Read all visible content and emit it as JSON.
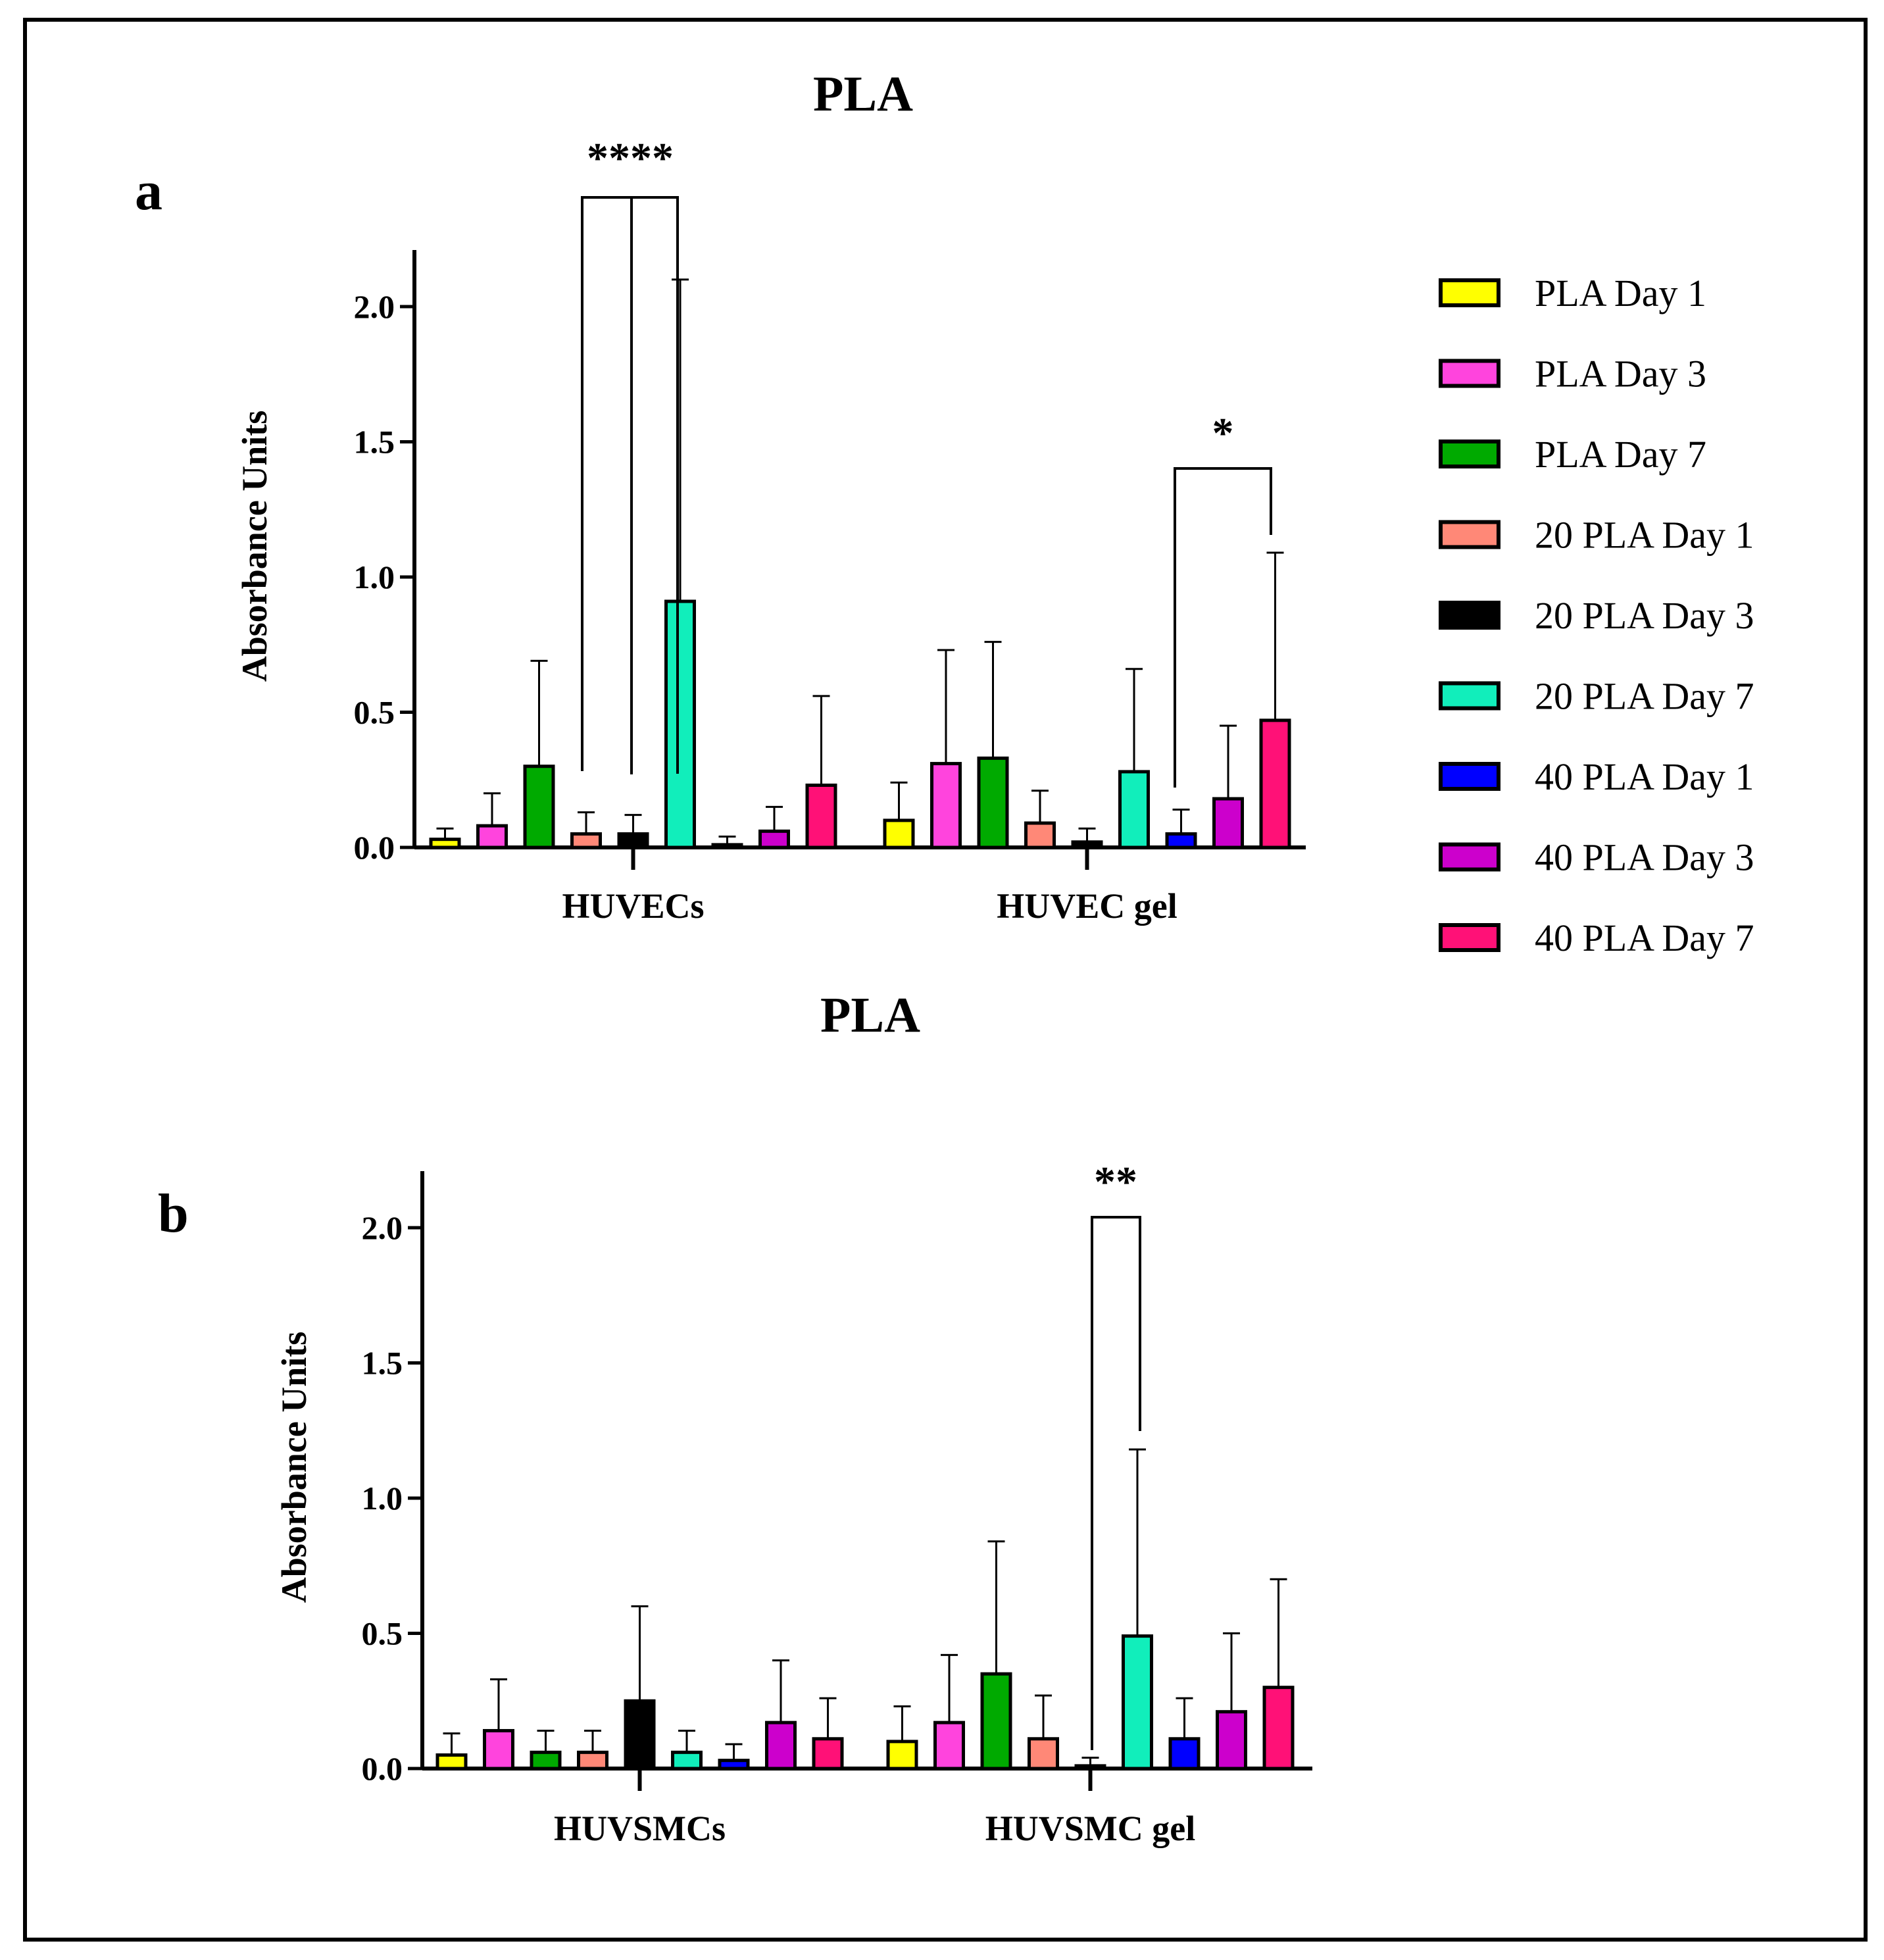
{
  "legend": {
    "entries": [
      {
        "label": "PLA Day 1",
        "color": "#ffff00"
      },
      {
        "label": "PLA Day 3",
        "color": "#ff44dd"
      },
      {
        "label": "PLA Day 7",
        "color": "#00aa00"
      },
      {
        "label": "20 PLA Day 1",
        "color": "#ff8877"
      },
      {
        "label": "20 PLA Day 3",
        "color": "#000000"
      },
      {
        "label": "20 PLA Day 7",
        "color": "#11eebb"
      },
      {
        "label": "40 PLA Day 1",
        "color": "#0000ff"
      },
      {
        "label": "40 PLA Day 3",
        "color": "#cc00cc"
      },
      {
        "label": "40 PLA Day 7",
        "color": "#ff1177"
      }
    ]
  },
  "chart_data": [
    {
      "type": "bar",
      "panel_label": "a",
      "title": "PLA",
      "ylabel": "Absorbance Units",
      "xlabel": "",
      "ylim": [
        0,
        2.2
      ],
      "yticks": [
        "0.0",
        "0.5",
        "1.0",
        "1.5",
        "2.0"
      ],
      "categories": [
        "HUVECs",
        "HUVEC gel"
      ],
      "series": [
        {
          "name": "PLA Day 1",
          "values": [
            0.03,
            0.1
          ],
          "errors": [
            0.04,
            0.14
          ]
        },
        {
          "name": "PLA Day 3",
          "values": [
            0.08,
            0.31
          ],
          "errors": [
            0.12,
            0.42
          ]
        },
        {
          "name": "PLA Day 7",
          "values": [
            0.3,
            0.33
          ],
          "errors": [
            0.39,
            0.43
          ]
        },
        {
          "name": "20 PLA Day 1",
          "values": [
            0.05,
            0.09
          ],
          "errors": [
            0.08,
            0.12
          ]
        },
        {
          "name": "20 PLA Day 3",
          "values": [
            0.05,
            0.02
          ],
          "errors": [
            0.07,
            0.05
          ]
        },
        {
          "name": "20 PLA Day 7",
          "values": [
            0.91,
            0.28
          ],
          "errors": [
            1.19,
            0.38
          ]
        },
        {
          "name": "40 PLA Day 1",
          "values": [
            0.01,
            0.05
          ],
          "errors": [
            0.03,
            0.09
          ]
        },
        {
          "name": "40 PLA Day 3",
          "values": [
            0.06,
            0.18
          ],
          "errors": [
            0.09,
            0.27
          ]
        },
        {
          "name": "40 PLA Day 7",
          "values": [
            0.23,
            0.47
          ],
          "errors": [
            0.33,
            0.62
          ]
        }
      ],
      "significance": [
        {
          "label": "****",
          "category": "HUVECs",
          "between": [
            "20 PLA Day 1",
            "20 PLA Day 3",
            "20 PLA Day 7"
          ]
        },
        {
          "label": "*",
          "category": "HUVEC gel",
          "between": [
            "40 PLA Day 1",
            "40 PLA Day 7"
          ]
        }
      ]
    },
    {
      "type": "bar",
      "panel_label": "b",
      "title": "PLA",
      "ylabel": "Absorbance Units",
      "xlabel": "",
      "ylim": [
        0,
        2.2
      ],
      "yticks": [
        "0.0",
        "0.5",
        "1.0",
        "1.5",
        "2.0"
      ],
      "categories": [
        "HUVSMCs",
        "HUVSMC gel"
      ],
      "series": [
        {
          "name": "PLA Day 1",
          "values": [
            0.05,
            0.1
          ],
          "errors": [
            0.08,
            0.13
          ]
        },
        {
          "name": "PLA Day 3",
          "values": [
            0.14,
            0.17
          ],
          "errors": [
            0.19,
            0.25
          ]
        },
        {
          "name": "PLA Day 7",
          "values": [
            0.06,
            0.35
          ],
          "errors": [
            0.08,
            0.49
          ]
        },
        {
          "name": "20 PLA Day 1",
          "values": [
            0.06,
            0.11
          ],
          "errors": [
            0.08,
            0.16
          ]
        },
        {
          "name": "20 PLA Day 3",
          "values": [
            0.25,
            0.01
          ],
          "errors": [
            0.35,
            0.03
          ]
        },
        {
          "name": "20 PLA Day 7",
          "values": [
            0.06,
            0.49
          ],
          "errors": [
            0.08,
            0.69
          ]
        },
        {
          "name": "40 PLA Day 1",
          "values": [
            0.03,
            0.11
          ],
          "errors": [
            0.06,
            0.15
          ]
        },
        {
          "name": "40 PLA Day 3",
          "values": [
            0.17,
            0.21
          ],
          "errors": [
            0.23,
            0.29
          ]
        },
        {
          "name": "40 PLA Day 7",
          "values": [
            0.11,
            0.3
          ],
          "errors": [
            0.15,
            0.4
          ]
        }
      ],
      "significance": [
        {
          "label": "**",
          "category": "HUVSMC gel",
          "between": [
            "20 PLA Day 3",
            "20 PLA Day 7"
          ]
        }
      ]
    }
  ]
}
